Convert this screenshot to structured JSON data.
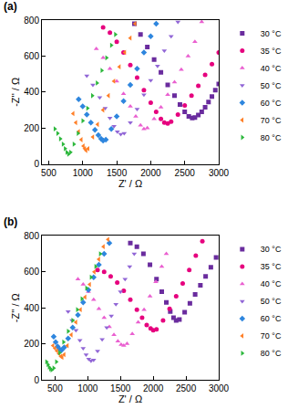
{
  "chart_data": [
    {
      "type": "scatter",
      "title": "(a)",
      "x_label": "Z' / Ω",
      "y_label": "-Z'' / Ω",
      "xlim": [
        400,
        3000
      ],
      "ylim": [
        0,
        800
      ],
      "xticks": [
        500,
        1000,
        1500,
        2000,
        2500,
        3000
      ],
      "yticks": [
        0,
        200,
        400,
        600,
        800
      ],
      "grid": false,
      "legend": "right",
      "series": [
        {
          "name": "30 °C",
          "color": "#6a2c9e",
          "marker": "square",
          "x": [
            1760,
            1850,
            1950,
            2050,
            2150,
            2250,
            2350,
            2430,
            2500,
            2560,
            2610,
            2650,
            2700,
            2750,
            2800,
            2850,
            2900,
            2950,
            3000
          ],
          "values": [
            780,
            720,
            650,
            580,
            510,
            440,
            380,
            330,
            290,
            265,
            255,
            258,
            272,
            290,
            315,
            345,
            375,
            410,
            445
          ]
        },
        {
          "name": "35 °C",
          "color": "#e6007e",
          "marker": "circle",
          "x": [
            1300,
            1400,
            1500,
            1600,
            1700,
            1800,
            1900,
            2000,
            2080,
            2150,
            2200,
            2250,
            2300,
            2400,
            2500,
            2600,
            2700,
            2800,
            2900,
            3000
          ],
          "values": [
            760,
            730,
            680,
            620,
            550,
            480,
            410,
            340,
            290,
            250,
            230,
            225,
            235,
            275,
            325,
            380,
            435,
            495,
            555,
            620
          ]
        },
        {
          "name": "40 °C",
          "color": "#ea5fd0",
          "marker": "triangle-up",
          "x": [
            1200,
            1300,
            1400,
            1500,
            1600,
            1700,
            1780,
            1850,
            1900,
            1950,
            2050,
            2150,
            2250,
            2350,
            2450,
            2550,
            2650,
            2750
          ],
          "values": [
            640,
            590,
            530,
            460,
            390,
            320,
            265,
            215,
            195,
            200,
            250,
            315,
            385,
            455,
            525,
            600,
            680,
            790
          ]
        },
        {
          "name": "50 °C",
          "color": "#9166d6",
          "marker": "triangle-down",
          "x": [
            1060,
            1150,
            1250,
            1330,
            1400,
            1460,
            1510,
            1560,
            1610,
            1700,
            1800,
            1900,
            2000,
            2100,
            2200,
            2300,
            2400
          ],
          "values": [
            490,
            440,
            370,
            310,
            255,
            210,
            180,
            165,
            170,
            230,
            305,
            385,
            465,
            545,
            630,
            710,
            790
          ]
        },
        {
          "name": "60 °C",
          "color": "#2e86de",
          "marker": "diamond",
          "x": [
            940,
            1000,
            1060,
            1120,
            1180,
            1230,
            1270,
            1300,
            1340,
            1420,
            1500,
            1600,
            1700,
            1800,
            1900,
            2000,
            2080
          ],
          "values": [
            360,
            320,
            275,
            230,
            190,
            160,
            140,
            130,
            135,
            195,
            265,
            350,
            440,
            530,
            620,
            710,
            780
          ]
        },
        {
          "name": "70 °C",
          "color": "#ff7f27",
          "marker": "triangle-left",
          "x": [
            860,
            900,
            940,
            980,
            1010,
            1030,
            1050,
            1080,
            1150,
            1220,
            1300,
            1380,
            1460,
            1540,
            1620,
            1700,
            1770
          ],
          "values": [
            280,
            230,
            180,
            135,
            100,
            85,
            75,
            85,
            150,
            220,
            300,
            380,
            460,
            540,
            620,
            700,
            780
          ]
        },
        {
          "name": "80 °C",
          "color": "#2db83d",
          "marker": "triangle-right",
          "x": [
            590,
            630,
            670,
            710,
            740,
            765,
            790,
            820,
            870,
            930,
            1000,
            1070,
            1140,
            1210,
            1280,
            1350,
            1420,
            1480
          ],
          "values": [
            195,
            170,
            140,
            110,
            85,
            65,
            55,
            65,
            110,
            170,
            240,
            310,
            380,
            450,
            520,
            590,
            660,
            720
          ]
        }
      ]
    },
    {
      "type": "scatter",
      "title": "(b)",
      "x_label": "Z' / Ω",
      "y_label": "-Z'' / Ω",
      "xlim": [
        300,
        3000
      ],
      "ylim": [
        0,
        800
      ],
      "xticks": [
        500,
        1000,
        1500,
        2000,
        2500,
        3000
      ],
      "yticks": [
        0,
        200,
        400,
        600,
        800
      ],
      "grid": false,
      "legend": "right",
      "series": [
        {
          "name": "30 °C",
          "color": "#6a2c9e",
          "marker": "square",
          "x": [
            1650,
            1750,
            1850,
            1950,
            2050,
            2130,
            2200,
            2260,
            2310,
            2350,
            2400,
            2480,
            2560,
            2640,
            2720,
            2800,
            2880,
            2960
          ],
          "values": [
            760,
            740,
            700,
            640,
            560,
            490,
            430,
            380,
            345,
            330,
            335,
            375,
            425,
            475,
            525,
            575,
            625,
            680
          ]
        },
        {
          "name": "35 °C",
          "color": "#e6007e",
          "marker": "circle",
          "x": [
            1150,
            1250,
            1350,
            1450,
            1550,
            1650,
            1750,
            1830,
            1900,
            1960,
            2000,
            2050,
            2150,
            2250,
            2350,
            2450,
            2550,
            2650,
            2750
          ],
          "values": [
            610,
            600,
            575,
            540,
            495,
            445,
            390,
            345,
            305,
            285,
            275,
            280,
            330,
            395,
            465,
            535,
            610,
            690,
            770
          ]
        },
        {
          "name": "40 °C",
          "color": "#ea5fd0",
          "marker": "triangle-up",
          "x": [
            850,
            930,
            1010,
            1090,
            1170,
            1250,
            1330,
            1400,
            1460,
            1510,
            1550,
            1600,
            1680,
            1770,
            1860,
            1950,
            2040,
            2130,
            2200
          ],
          "values": [
            560,
            530,
            490,
            445,
            395,
            345,
            295,
            250,
            215,
            195,
            190,
            200,
            255,
            320,
            390,
            465,
            545,
            630,
            700
          ]
        },
        {
          "name": "50 °C",
          "color": "#9166d6",
          "marker": "triangle-down",
          "x": [
            700,
            760,
            820,
            880,
            930,
            975,
            1015,
            1050,
            1090,
            1150,
            1220,
            1290,
            1360,
            1430,
            1500,
            1570,
            1640,
            1710
          ],
          "values": [
            380,
            330,
            275,
            220,
            175,
            140,
            115,
            105,
            110,
            160,
            225,
            290,
            355,
            420,
            490,
            560,
            630,
            700
          ]
        },
        {
          "name": "60 °C",
          "color": "#2e86de",
          "marker": "diamond",
          "x": [
            480,
            510,
            540,
            570,
            600,
            640,
            700,
            770,
            850,
            930,
            1010,
            1090,
            1170,
            1250,
            1330
          ],
          "values": [
            240,
            210,
            185,
            170,
            165,
            180,
            230,
            290,
            360,
            430,
            500,
            570,
            640,
            700,
            760
          ]
        },
        {
          "name": "70 °C",
          "color": "#ff7f27",
          "marker": "triangle-left",
          "x": [
            470,
            500,
            530,
            560,
            590,
            610,
            640,
            690,
            750,
            820,
            890,
            960,
            1030,
            1100,
            1170,
            1240,
            1310
          ],
          "values": [
            190,
            175,
            160,
            145,
            130,
            125,
            140,
            190,
            250,
            320,
            390,
            460,
            530,
            600,
            670,
            740,
            780
          ]
        },
        {
          "name": "80 °C",
          "color": "#2db83d",
          "marker": "triangle-right",
          "x": [
            370,
            390,
            410,
            430,
            450,
            480,
            520,
            570,
            630,
            700,
            770,
            840,
            910,
            980,
            1050,
            1120,
            1190
          ],
          "values": [
            100,
            85,
            70,
            60,
            55,
            65,
            100,
            150,
            210,
            270,
            330,
            390,
            450,
            510,
            570,
            630,
            700
          ]
        }
      ]
    }
  ]
}
